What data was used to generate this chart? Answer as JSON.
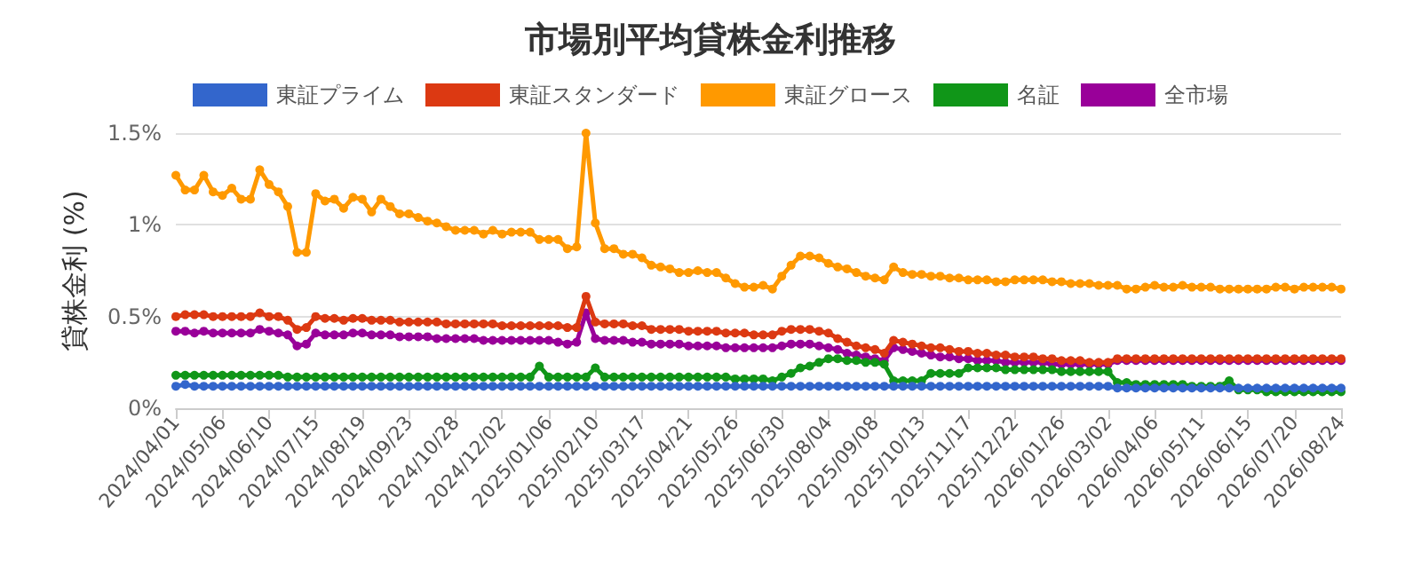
{
  "chart_data": {
    "type": "line",
    "title": "市場別平均貸株金利推移",
    "ylabel": "貸株金利 (%)",
    "categories": [
      "2024/04/01",
      null,
      null,
      null,
      null,
      "2024/05/06",
      null,
      null,
      null,
      null,
      "2024/06/10",
      null,
      null,
      null,
      null,
      "2024/07/15",
      null,
      null,
      null,
      null,
      "2024/08/19",
      null,
      null,
      null,
      null,
      "2024/09/23",
      null,
      null,
      null,
      null,
      "2024/10/28",
      null,
      null,
      null,
      null,
      "2024/12/02",
      null,
      null,
      null,
      null,
      "2025/01/06",
      null,
      null,
      null,
      null,
      "2025/02/10",
      null,
      null,
      null,
      null,
      "2025/03/17",
      null,
      null,
      null,
      null,
      "2025/04/21",
      null,
      null,
      null,
      null,
      "2025/05/26",
      null,
      null,
      null,
      null,
      "2025/06/30",
      null,
      null,
      null,
      null,
      "2025/08/04",
      null,
      null,
      null,
      null,
      "2025/09/08",
      null,
      null,
      null,
      null,
      "2025/10/13",
      null,
      null,
      null,
      null,
      "2025/11/17",
      null,
      null,
      null,
      null,
      "2025/12/22",
      null,
      null,
      null,
      null,
      "2026/01/26",
      null,
      null,
      null,
      null,
      "2026/03/02",
      null,
      null,
      null,
      null,
      "2026/04/06",
      null,
      null,
      null,
      null,
      "2026/05/11",
      null,
      null,
      null,
      null,
      "2026/06/15",
      null,
      null,
      null,
      null,
      "2026/07/20",
      null,
      null,
      null,
      null,
      "2026/08/24"
    ],
    "series": [
      {
        "name": "東証プライム",
        "color": "#3366cc",
        "values": [
          0.12,
          0.13,
          0.12,
          0.12,
          0.12,
          0.12,
          0.12,
          0.12,
          0.12,
          0.12,
          0.12,
          0.12,
          0.12,
          0.12,
          0.12,
          0.12,
          0.12,
          0.12,
          0.12,
          0.12,
          0.12,
          0.12,
          0.12,
          0.12,
          0.12,
          0.12,
          0.12,
          0.12,
          0.12,
          0.12,
          0.12,
          0.12,
          0.12,
          0.12,
          0.12,
          0.12,
          0.12,
          0.12,
          0.12,
          0.12,
          0.12,
          0.12,
          0.12,
          0.12,
          0.12,
          0.12,
          0.12,
          0.12,
          0.12,
          0.12,
          0.12,
          0.12,
          0.12,
          0.12,
          0.12,
          0.12,
          0.12,
          0.12,
          0.12,
          0.12,
          0.12,
          0.12,
          0.12,
          0.12,
          0.12,
          0.12,
          0.12,
          0.12,
          0.12,
          0.12,
          0.12,
          0.12,
          0.12,
          0.12,
          0.12,
          0.12,
          0.12,
          0.12,
          0.12,
          0.12,
          0.12,
          0.12,
          0.12,
          0.12,
          0.12,
          0.12,
          0.12,
          0.12,
          0.12,
          0.12,
          0.12,
          0.12,
          0.12,
          0.12,
          0.12,
          0.12,
          0.12,
          0.12,
          0.12,
          0.12,
          0.12,
          0.11,
          0.11,
          0.11,
          0.11,
          0.11,
          0.11,
          0.11,
          0.11,
          0.11,
          0.11,
          0.11,
          0.11,
          0.11,
          0.11,
          0.11,
          0.11,
          0.11,
          0.11,
          0.11,
          0.11,
          0.11,
          0.11,
          0.11,
          0.11,
          0.11
        ]
      },
      {
        "name": "東証スタンダード",
        "color": "#dc3912",
        "values": [
          0.5,
          0.51,
          0.51,
          0.51,
          0.5,
          0.5,
          0.5,
          0.5,
          0.5,
          0.52,
          0.5,
          0.5,
          0.48,
          0.43,
          0.44,
          0.5,
          0.49,
          0.49,
          0.48,
          0.49,
          0.49,
          0.48,
          0.48,
          0.48,
          0.47,
          0.47,
          0.47,
          0.47,
          0.47,
          0.46,
          0.46,
          0.46,
          0.46,
          0.46,
          0.46,
          0.45,
          0.45,
          0.45,
          0.45,
          0.45,
          0.45,
          0.45,
          0.44,
          0.44,
          0.61,
          0.47,
          0.46,
          0.46,
          0.46,
          0.45,
          0.45,
          0.43,
          0.43,
          0.43,
          0.43,
          0.42,
          0.42,
          0.42,
          0.42,
          0.41,
          0.41,
          0.41,
          0.4,
          0.4,
          0.4,
          0.42,
          0.43,
          0.43,
          0.43,
          0.42,
          0.41,
          0.38,
          0.36,
          0.34,
          0.33,
          0.32,
          0.3,
          0.37,
          0.36,
          0.35,
          0.34,
          0.33,
          0.33,
          0.32,
          0.31,
          0.31,
          0.3,
          0.3,
          0.29,
          0.29,
          0.28,
          0.28,
          0.28,
          0.27,
          0.27,
          0.26,
          0.26,
          0.26,
          0.25,
          0.25,
          0.25,
          0.27,
          0.27,
          0.27,
          0.27,
          0.27,
          0.27,
          0.27,
          0.27,
          0.27,
          0.27,
          0.27,
          0.27,
          0.27,
          0.27,
          0.27,
          0.27,
          0.27,
          0.27,
          0.27,
          0.27,
          0.27,
          0.27,
          0.27,
          0.27,
          0.27
        ]
      },
      {
        "name": "東証グロース",
        "color": "#ff9900",
        "values": [
          1.27,
          1.19,
          1.19,
          1.27,
          1.18,
          1.16,
          1.2,
          1.14,
          1.14,
          1.3,
          1.22,
          1.18,
          1.1,
          0.85,
          0.85,
          1.17,
          1.13,
          1.14,
          1.09,
          1.15,
          1.14,
          1.07,
          1.14,
          1.1,
          1.06,
          1.06,
          1.04,
          1.02,
          1.01,
          0.99,
          0.97,
          0.97,
          0.97,
          0.95,
          0.97,
          0.95,
          0.96,
          0.96,
          0.96,
          0.92,
          0.92,
          0.92,
          0.87,
          0.88,
          1.5,
          1.01,
          0.87,
          0.87,
          0.84,
          0.84,
          0.82,
          0.78,
          0.77,
          0.76,
          0.74,
          0.74,
          0.75,
          0.74,
          0.74,
          0.71,
          0.68,
          0.66,
          0.66,
          0.67,
          0.65,
          0.72,
          0.78,
          0.83,
          0.83,
          0.82,
          0.79,
          0.77,
          0.76,
          0.74,
          0.72,
          0.71,
          0.7,
          0.77,
          0.74,
          0.73,
          0.73,
          0.72,
          0.72,
          0.71,
          0.71,
          0.7,
          0.7,
          0.7,
          0.69,
          0.69,
          0.7,
          0.7,
          0.7,
          0.7,
          0.69,
          0.69,
          0.68,
          0.68,
          0.68,
          0.67,
          0.67,
          0.67,
          0.65,
          0.65,
          0.66,
          0.67,
          0.66,
          0.66,
          0.67,
          0.66,
          0.66,
          0.66,
          0.65,
          0.65,
          0.65,
          0.65,
          0.65,
          0.65,
          0.66,
          0.66,
          0.65,
          0.66,
          0.66,
          0.66,
          0.66,
          0.65
        ]
      },
      {
        "name": "名証",
        "color": "#109618",
        "values": [
          0.18,
          0.18,
          0.18,
          0.18,
          0.18,
          0.18,
          0.18,
          0.18,
          0.18,
          0.18,
          0.18,
          0.18,
          0.17,
          0.17,
          0.17,
          0.17,
          0.17,
          0.17,
          0.17,
          0.17,
          0.17,
          0.17,
          0.17,
          0.17,
          0.17,
          0.17,
          0.17,
          0.17,
          0.17,
          0.17,
          0.17,
          0.17,
          0.17,
          0.17,
          0.17,
          0.17,
          0.17,
          0.17,
          0.17,
          0.23,
          0.17,
          0.17,
          0.17,
          0.17,
          0.17,
          0.22,
          0.17,
          0.17,
          0.17,
          0.17,
          0.17,
          0.17,
          0.17,
          0.17,
          0.17,
          0.17,
          0.17,
          0.17,
          0.17,
          0.17,
          0.16,
          0.16,
          0.16,
          0.16,
          0.15,
          0.17,
          0.19,
          0.22,
          0.23,
          0.25,
          0.27,
          0.27,
          0.26,
          0.26,
          0.25,
          0.25,
          0.24,
          0.15,
          0.15,
          0.15,
          0.15,
          0.19,
          0.19,
          0.19,
          0.19,
          0.22,
          0.22,
          0.22,
          0.22,
          0.21,
          0.21,
          0.21,
          0.21,
          0.21,
          0.21,
          0.2,
          0.2,
          0.2,
          0.2,
          0.2,
          0.2,
          0.14,
          0.14,
          0.13,
          0.13,
          0.13,
          0.13,
          0.13,
          0.13,
          0.12,
          0.12,
          0.12,
          0.12,
          0.15,
          0.1,
          0.1,
          0.1,
          0.09,
          0.09,
          0.09,
          0.09,
          0.09,
          0.09,
          0.09,
          0.09,
          0.09
        ]
      },
      {
        "name": "全市場",
        "color": "#990099",
        "values": [
          0.42,
          0.42,
          0.41,
          0.42,
          0.41,
          0.41,
          0.41,
          0.41,
          0.41,
          0.43,
          0.42,
          0.41,
          0.4,
          0.34,
          0.35,
          0.41,
          0.4,
          0.4,
          0.4,
          0.41,
          0.41,
          0.4,
          0.4,
          0.4,
          0.39,
          0.39,
          0.39,
          0.39,
          0.38,
          0.38,
          0.38,
          0.38,
          0.38,
          0.37,
          0.37,
          0.37,
          0.37,
          0.37,
          0.37,
          0.37,
          0.37,
          0.36,
          0.35,
          0.36,
          0.52,
          0.38,
          0.37,
          0.37,
          0.37,
          0.36,
          0.36,
          0.35,
          0.35,
          0.35,
          0.35,
          0.34,
          0.34,
          0.34,
          0.34,
          0.33,
          0.33,
          0.33,
          0.33,
          0.33,
          0.33,
          0.34,
          0.35,
          0.35,
          0.35,
          0.34,
          0.33,
          0.32,
          0.3,
          0.29,
          0.28,
          0.27,
          0.26,
          0.33,
          0.32,
          0.31,
          0.3,
          0.29,
          0.28,
          0.28,
          0.27,
          0.27,
          0.26,
          0.26,
          0.26,
          0.25,
          0.25,
          0.25,
          0.25,
          0.25,
          0.24,
          0.24,
          0.24,
          0.24,
          0.24,
          0.24,
          0.24,
          0.26,
          0.26,
          0.26,
          0.26,
          0.26,
          0.26,
          0.26,
          0.26,
          0.26,
          0.26,
          0.26,
          0.26,
          0.26,
          0.26,
          0.26,
          0.26,
          0.26,
          0.26,
          0.26,
          0.26,
          0.26,
          0.26,
          0.26,
          0.26,
          0.26
        ]
      }
    ],
    "ylim": [
      0,
      1.5
    ],
    "yticks": [
      {
        "value": 0,
        "label": "0%"
      },
      {
        "value": 0.5,
        "label": "0.5%"
      },
      {
        "value": 1,
        "label": "1%"
      },
      {
        "value": 1.5,
        "label": "1.5%"
      }
    ],
    "grid": "y",
    "legend": "top",
    "marker": "circle",
    "line_style": "solid"
  }
}
